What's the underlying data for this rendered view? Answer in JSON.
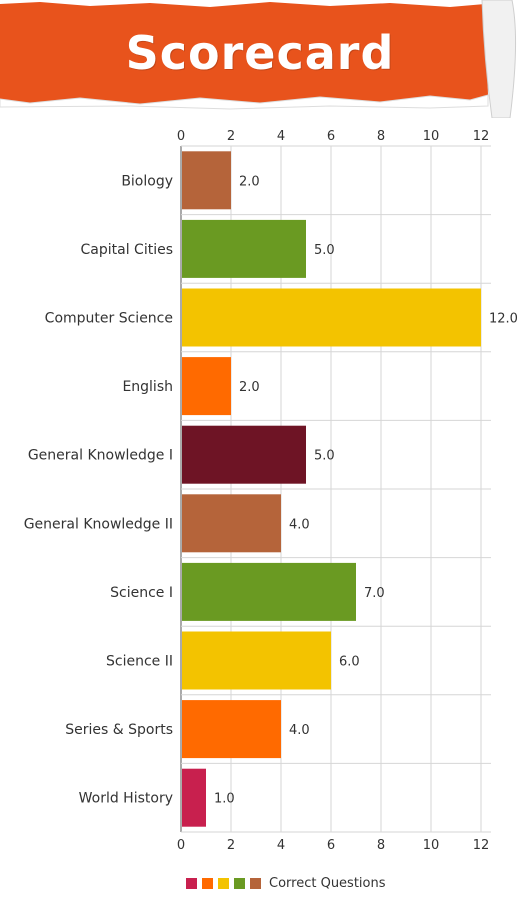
{
  "title": "Scorecard",
  "colors": {
    "banner": "#e8531c",
    "banner_dark": "#b8400f",
    "grid": "#d6d6d6",
    "axis": "#555555"
  },
  "chart_data": {
    "type": "bar",
    "orientation": "horizontal",
    "categories": [
      "Biology",
      "Capital Cities",
      "Computer Science",
      "English",
      "General Knowledge I",
      "General Knowledge II",
      "Science I",
      "Science II",
      "Series & Sports",
      "World History"
    ],
    "series": [
      {
        "name": "Correct Questions",
        "values": [
          2.0,
          5.0,
          12.0,
          2.0,
          5.0,
          4.0,
          7.0,
          6.0,
          4.0,
          1.0
        ]
      }
    ],
    "data_labels": [
      "2.0",
      "5.0",
      "12.0",
      "2.0",
      "5.0",
      "4.0",
      "7.0",
      "6.0",
      "4.0",
      "1.0"
    ],
    "bar_colors": [
      "#b5643a",
      "#6a9a22",
      "#f3c300",
      "#ff6a00",
      "#6e1425",
      "#b5643a",
      "#6a9a22",
      "#f3c300",
      "#ff6a00",
      "#c8204e"
    ],
    "xlim": [
      0,
      12
    ],
    "xticks": [
      "0",
      "2",
      "4",
      "6",
      "8",
      "10",
      "12"
    ],
    "grid": true,
    "axis_position": "top-and-bottom",
    "legend": {
      "position": "bottom",
      "swatch_colors": [
        "#c8204e",
        "#ff6a00",
        "#f3c300",
        "#6a9a22",
        "#b5643a"
      ],
      "label": "Correct Questions"
    }
  }
}
